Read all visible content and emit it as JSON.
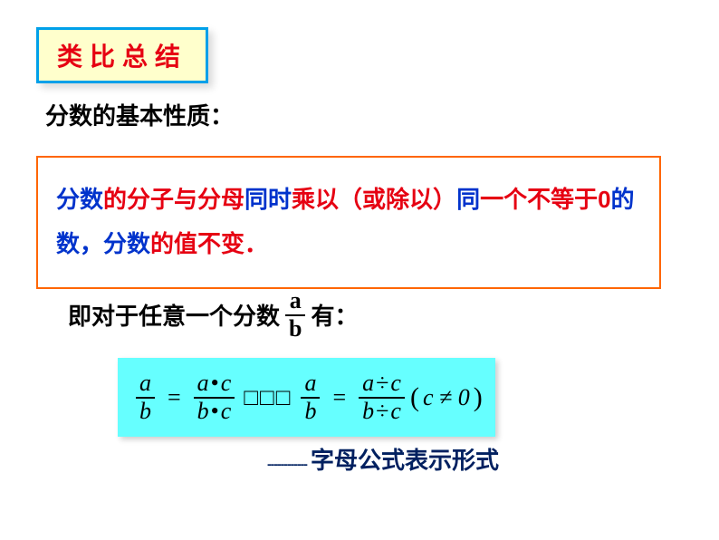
{
  "title": "类比总结",
  "subtitle": "分数的基本性质：",
  "rule": {
    "p1a": "分数",
    "p1b": "的分子与分母",
    "p1c": "同时",
    "p1d": "乘以（或除以）",
    "p1e": "同",
    "p1f": "一个不等于0",
    "p1g": "的数，分数",
    "p1h": "的值不变．"
  },
  "line2_before": "即对于任意一个分数",
  "line2_frac_num": "a",
  "line2_frac_den": "b",
  "line2_after": "有：",
  "formula": {
    "f1n": "a",
    "f1d": "b",
    "f2n_a": "a",
    "f2n_op": "•",
    "f2n_c": "c",
    "f2d_a": "b",
    "f2d_op": "•",
    "f2d_c": "c",
    "placeholder": "□□□",
    "f3n": "a",
    "f3d": "b",
    "f4n_a": "a",
    "f4n_op": "÷",
    "f4n_c": "c",
    "f4d_a": "b",
    "f4d_op": "÷",
    "f4d_c": "c",
    "cond": "c ≠ 0"
  },
  "caption_dash": "------------",
  "caption": "字母公式表示形式",
  "colors": {
    "title_border": "#00a0e9",
    "title_bg": "#ffffcc",
    "title_text": "#e60012",
    "rule_border": "#ff6600",
    "blue": "#0033cc",
    "red": "#e60012",
    "formula_bg": "#66ffff",
    "caption_color": "#002060"
  }
}
